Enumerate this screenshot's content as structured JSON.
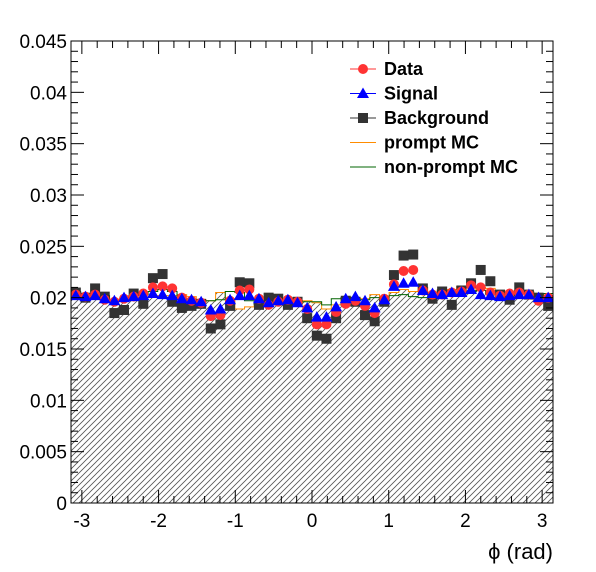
{
  "chart_data": {
    "type": "histogram-overlay",
    "title": "",
    "xlabel": "ϕ (rad)",
    "ylabel": "",
    "xlim": [
      -3.1416,
      3.1416
    ],
    "ylim": [
      0,
      0.045
    ],
    "nbins": 50,
    "x_ticks": [
      -3,
      -2,
      -1,
      0,
      1,
      2,
      3
    ],
    "x_tick_labels": [
      "-3",
      "-2",
      "-1",
      "0",
      "1",
      "2",
      "3"
    ],
    "y_ticks": [
      0,
      0.005,
      0.01,
      0.015,
      0.02,
      0.025,
      0.03,
      0.035,
      0.04,
      0.045
    ],
    "y_tick_labels": [
      "0",
      "0.005",
      "0.01",
      "0.015",
      "0.02",
      "0.025",
      "0.03",
      "0.035",
      "0.04",
      "0.045"
    ],
    "legend_position": "top-right",
    "series": [
      {
        "name": "Data",
        "marker": "circle",
        "color": "#ff3333",
        "values": [
          0.0203,
          0.0201,
          0.0203,
          0.0198,
          0.0196,
          0.0199,
          0.0201,
          0.0204,
          0.021,
          0.0211,
          0.0209,
          0.02,
          0.0197,
          0.0195,
          0.0182,
          0.0183,
          0.0197,
          0.0207,
          0.0208,
          0.0199,
          0.0193,
          0.0196,
          0.0198,
          0.0196,
          0.0189,
          0.0174,
          0.0174,
          0.0186,
          0.0194,
          0.0197,
          0.0192,
          0.0185,
          0.0199,
          0.0213,
          0.0226,
          0.0227,
          0.0207,
          0.0203,
          0.0203,
          0.0205,
          0.0206,
          0.0212,
          0.021,
          0.0205,
          0.0202,
          0.0204,
          0.0205,
          0.0203,
          0.0197,
          0.02
        ]
      },
      {
        "name": "Signal",
        "marker": "triangle",
        "color": "#0000ff",
        "values": [
          0.0202,
          0.0201,
          0.0202,
          0.0199,
          0.0197,
          0.02,
          0.0201,
          0.0202,
          0.0204,
          0.0203,
          0.0202,
          0.0199,
          0.0198,
          0.0196,
          0.0188,
          0.0189,
          0.0198,
          0.0202,
          0.0202,
          0.0199,
          0.0195,
          0.0197,
          0.0198,
          0.0195,
          0.019,
          0.0181,
          0.0181,
          0.0191,
          0.0199,
          0.0201,
          0.0197,
          0.019,
          0.0198,
          0.0211,
          0.0214,
          0.0215,
          0.0207,
          0.0204,
          0.0203,
          0.0205,
          0.0205,
          0.0208,
          0.0203,
          0.0202,
          0.0201,
          0.0202,
          0.0203,
          0.0203,
          0.02,
          0.02
        ]
      },
      {
        "name": "Background",
        "marker": "square",
        "color": "#333333",
        "values": [
          0.0205,
          0.02,
          0.0209,
          0.0201,
          0.0185,
          0.0188,
          0.0204,
          0.0194,
          0.0219,
          0.0223,
          0.0196,
          0.019,
          0.0192,
          0.0194,
          0.017,
          0.0174,
          0.0192,
          0.0215,
          0.0214,
          0.0193,
          0.02,
          0.0199,
          0.0193,
          0.0196,
          0.018,
          0.0163,
          0.016,
          0.018,
          0.0197,
          0.0196,
          0.0183,
          0.0177,
          0.0196,
          0.0222,
          0.0241,
          0.0242,
          0.0209,
          0.0199,
          0.0206,
          0.0193,
          0.0207,
          0.0214,
          0.0227,
          0.0216,
          0.0203,
          0.0198,
          0.021,
          0.0203,
          0.02,
          0.0192
        ]
      },
      {
        "name": "prompt MC",
        "marker": "line",
        "color": "#ff8c00",
        "values": [
          0.0202,
          0.02,
          0.0199,
          0.02,
          0.0198,
          0.0199,
          0.0199,
          0.02,
          0.0201,
          0.0202,
          0.0202,
          0.0203,
          0.0201,
          0.0198,
          0.0197,
          0.0205,
          0.0199,
          0.0189,
          0.0191,
          0.0194,
          0.0196,
          0.0196,
          0.0194,
          0.0195,
          0.0197,
          0.0195,
          0.0189,
          0.0193,
          0.0199,
          0.02,
          0.0199,
          0.0203,
          0.02,
          0.0205,
          0.0208,
          0.0206,
          0.021,
          0.0205,
          0.0208,
          0.0208,
          0.0211,
          0.0207,
          0.021,
          0.0209,
          0.0207,
          0.0203,
          0.0207,
          0.0206,
          0.0203,
          0.0202
        ]
      },
      {
        "name": "non-prompt MC",
        "marker": "line",
        "color": "#006400",
        "values": [
          0.0206,
          0.0204,
          0.02,
          0.0202,
          0.0197,
          0.0197,
          0.0202,
          0.0203,
          0.0206,
          0.0208,
          0.0206,
          0.0199,
          0.0197,
          0.0196,
          0.0197,
          0.0198,
          0.0206,
          0.0205,
          0.0197,
          0.0193,
          0.0195,
          0.0193,
          0.0195,
          0.0197,
          0.0196,
          0.0196,
          0.0193,
          0.0199,
          0.02,
          0.0199,
          0.0198,
          0.02,
          0.0197,
          0.0202,
          0.0203,
          0.0201,
          0.02,
          0.0203,
          0.0207,
          0.0204,
          0.0205,
          0.0206,
          0.0207,
          0.0204,
          0.0202,
          0.0202,
          0.0205,
          0.0205,
          0.0202,
          0.0204
        ]
      }
    ]
  }
}
